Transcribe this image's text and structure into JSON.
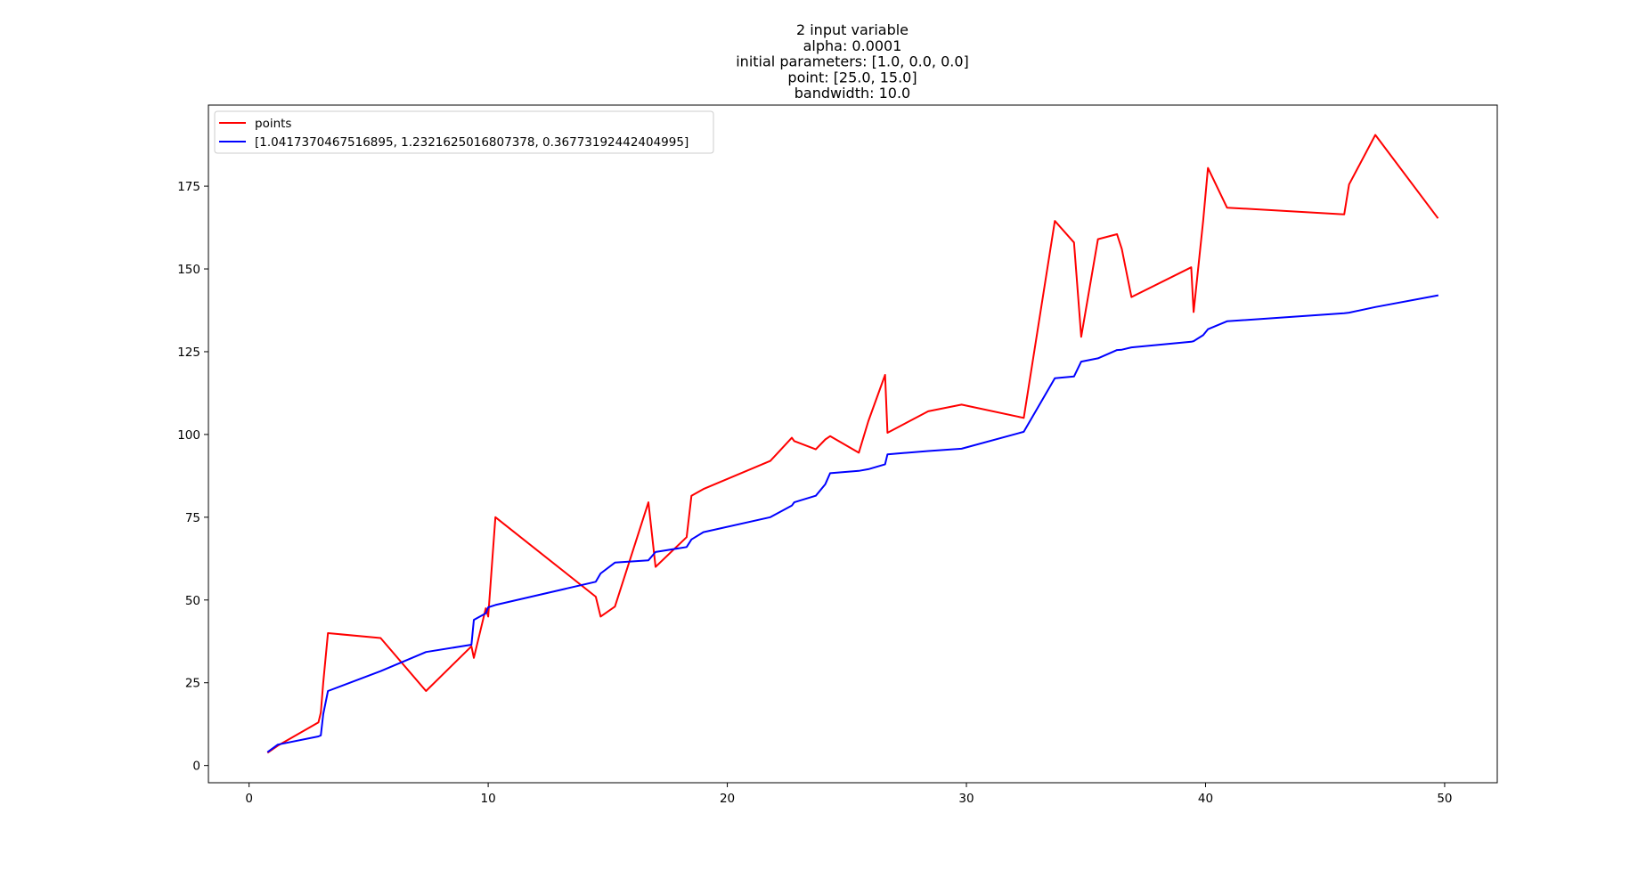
{
  "chart_data": {
    "type": "line",
    "title_lines": [
      "2 input variable",
      "alpha: 0.0001",
      "initial parameters: [1.0, 0.0, 0.0]",
      "point: [25.0, 15.0]",
      "bandwidth: 10.0"
    ],
    "xlabel": "",
    "ylabel": "",
    "xlim": [
      -1.7,
      52.2
    ],
    "ylim": [
      -5.2,
      199.5
    ],
    "xticks": [
      0,
      10,
      20,
      30,
      40,
      50
    ],
    "yticks": [
      0,
      25,
      50,
      75,
      100,
      125,
      150,
      175
    ],
    "legend_position": "upper-left",
    "grid": false,
    "series": [
      {
        "name": "points",
        "color": "#ff0000",
        "x": [
          0.8,
          1.2,
          2.9,
          3.0,
          3.1,
          3.3,
          5.5,
          7.4,
          9.3,
          9.4,
          9.9,
          10.0,
          10.3,
          14.5,
          14.7,
          15.3,
          16.7,
          17.0,
          18.3,
          18.5,
          19.0,
          21.8,
          22.7,
          22.8,
          23.7,
          24.1,
          24.3,
          25.5,
          25.9,
          26.6,
          26.7,
          28.4,
          29.8,
          32.4,
          33.7,
          34.5,
          34.8,
          35.5,
          36.3,
          36.5,
          36.9,
          39.4,
          39.5,
          39.9,
          40.1,
          40.9,
          45.8,
          46.0,
          47.1,
          49.7
        ],
        "y": [
          4,
          6,
          13,
          16,
          25,
          40,
          38.5,
          22.5,
          36,
          32.5,
          47.5,
          45,
          75,
          51,
          45,
          48,
          79.5,
          60,
          69,
          81.5,
          83.5,
          92,
          99,
          98,
          95.5,
          98.5,
          99.5,
          94.5,
          104,
          118,
          100.5,
          107,
          109,
          105,
          164.5,
          158,
          129.5,
          159,
          160.5,
          156,
          141.5,
          150.5,
          137,
          164.5,
          180.5,
          168.5,
          166.5,
          175.5,
          190.5,
          165.5
        ]
      },
      {
        "name": "[1.0417370467516895, 1.2321625016807378, 0.36773192442404995]",
        "color": "#0000ff",
        "x": [
          0.8,
          1.2,
          2.9,
          3.0,
          3.1,
          3.3,
          5.5,
          7.4,
          9.3,
          9.4,
          9.9,
          10.0,
          10.3,
          14.5,
          14.7,
          15.3,
          16.7,
          17.0,
          18.3,
          18.5,
          19.0,
          21.8,
          22.7,
          22.8,
          23.7,
          24.1,
          24.3,
          25.5,
          25.9,
          26.6,
          26.7,
          28.4,
          29.8,
          32.4,
          33.7,
          34.5,
          34.8,
          35.5,
          36.3,
          36.5,
          36.9,
          39.4,
          39.5,
          39.9,
          40.1,
          40.9,
          45.8,
          46.0,
          47.1,
          49.7
        ],
        "y": [
          4.2,
          6.3,
          8.8,
          9.1,
          15.5,
          22.5,
          28.5,
          34.3,
          36.5,
          44,
          46,
          47.8,
          48.5,
          55.5,
          58,
          61.3,
          62,
          64.5,
          66,
          68.3,
          70.5,
          75,
          78.5,
          79.5,
          81.5,
          85,
          88.3,
          89,
          89.5,
          91,
          94,
          95,
          95.7,
          100.8,
          117,
          117.5,
          122,
          123,
          125.5,
          125.6,
          126.3,
          128,
          128.2,
          130,
          131.8,
          134.2,
          136.6,
          136.8,
          138.5,
          142
        ]
      }
    ]
  }
}
